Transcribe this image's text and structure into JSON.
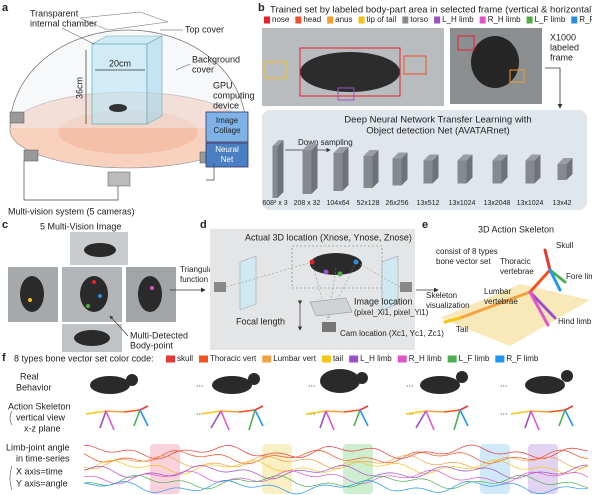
{
  "panel_a": {
    "label": "a",
    "chamber": [
      "Transparent",
      "internal chamber"
    ],
    "top_cover": "Top cover",
    "background_cover": [
      "Background",
      "cover"
    ],
    "height": "36cm",
    "width": "20cm",
    "gpu": [
      "GPU",
      "computing",
      "device"
    ],
    "image_collage": [
      "Image",
      "Collage"
    ],
    "neural_net": [
      "Neural",
      "Net"
    ],
    "cameras": "Multi-vision system (5 cameras)"
  },
  "panel_b": {
    "label": "b",
    "title": "Trained set by labeled body-part area in selected frame (vertical & horizontal)",
    "legend": [
      {
        "name": "nose",
        "color": "#e8202a"
      },
      {
        "name": "head",
        "color": "#f0502a"
      },
      {
        "name": "anus",
        "color": "#f59a2c"
      },
      {
        "name": "tip of tail",
        "color": "#f2c21b"
      },
      {
        "name": "torso",
        "color": "#8a8a8a"
      },
      {
        "name": "L_H limb",
        "color": "#9b4fc9"
      },
      {
        "name": "R_H limb",
        "color": "#e055c5"
      },
      {
        "name": "L_F limb",
        "color": "#52ad45"
      },
      {
        "name": "R_F limb",
        "color": "#2b8fe0"
      }
    ],
    "frames": [
      "X1000",
      "labeled",
      "frame"
    ],
    "net_title": [
      "Deep Neural Network Transfer Learning with",
      "Object detection Net (AVATARnet)"
    ],
    "down_sampling": "Down sampling",
    "layers": [
      "608² x 3",
      "208 x 32",
      "104x64",
      "52x128",
      "26x256",
      "13x512",
      "13x1024",
      "13x2048",
      "13x1024",
      "13x42"
    ]
  },
  "panel_c": {
    "label": "c",
    "title": "5 Multi-Vision Image",
    "triangular": [
      "Triangular",
      "function"
    ],
    "detected": [
      "Multi-Detected",
      "Body-point"
    ]
  },
  "panel_d": {
    "label": "d",
    "actual": "Actual 3D location (Xnose, Ynose, Znose)",
    "image_location": [
      "Image location",
      "(pixel_Xi1, pixel_Yi1)"
    ],
    "focal": "Focal length",
    "cam": "Cam location (Xc1, Yc1, Zc1)"
  },
  "panel_e": {
    "label": "e",
    "title": "3D Action Skeleton",
    "consist": [
      "consist of 8 types",
      "bone vector set"
    ],
    "visualization": [
      "Skeleton",
      "visualization"
    ],
    "skull": "Skull",
    "thoracic": [
      "Thoracic",
      "vertebrae"
    ],
    "fore": "Fore limb",
    "lumbar": [
      "Lumbar",
      "vertebrae"
    ],
    "tail": "Tail",
    "hind": "Hind limb"
  },
  "panel_f": {
    "label": "f",
    "legend_title": "8 types bone vector set color code:",
    "legend": [
      {
        "name": "skull",
        "color": "#e53935"
      },
      {
        "name": "Thoracic vert",
        "color": "#f4511e"
      },
      {
        "name": "Lumbar vert",
        "color": "#f5a142"
      },
      {
        "name": "tail",
        "color": "#f5c518"
      },
      {
        "name": "L_H limb",
        "color": "#9c4dcc"
      },
      {
        "name": "R_H limb",
        "color": "#e056c8"
      },
      {
        "name": "L_F limb",
        "color": "#4caf50"
      },
      {
        "name": "R_F limb",
        "color": "#2196f3"
      }
    ],
    "real": [
      "Real",
      "Behavior"
    ],
    "skeleton": [
      "Action Skeleton",
      "vertical view",
      "x-z plane"
    ],
    "angle": [
      "Limb-joint angle",
      "in time-series",
      "X axis=time",
      "Y axis=angle"
    ],
    "ellipsis": "..."
  }
}
